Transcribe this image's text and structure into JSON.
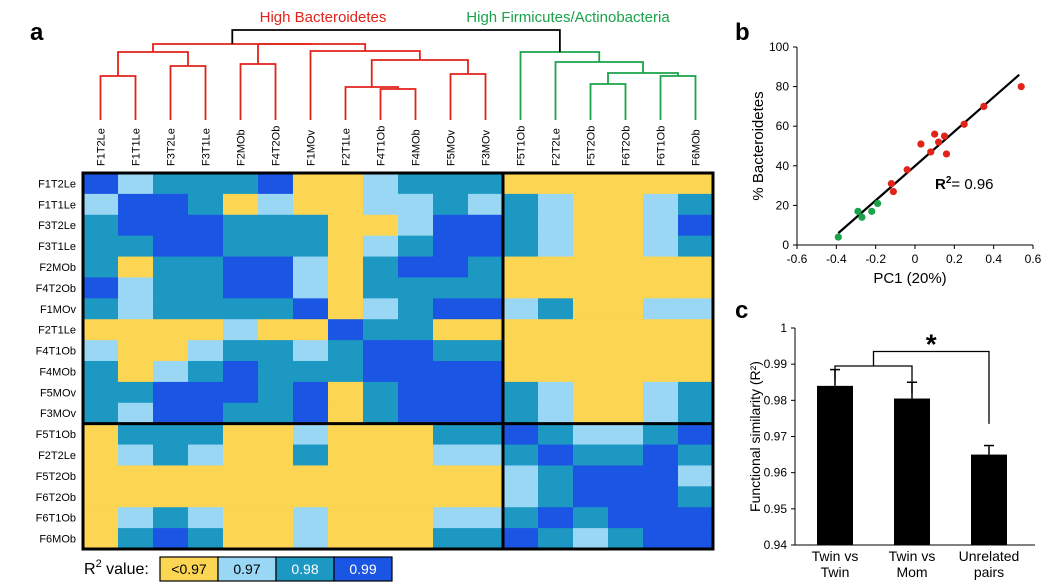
{
  "colors": {
    "bacteroidetes_red": "#e2231a",
    "firmicutes_green": "#1aa34a",
    "bin_lt097": "#fcd553",
    "bin_097": "#9ad7f4",
    "bin_098": "#1c98c2",
    "bin_099": "#1b55e3",
    "black": "#000000"
  },
  "panel_a": {
    "label": "a",
    "group_labels": {
      "red": "High Bacteroidetes",
      "green": "High Firmicutes/Actinobacteria"
    },
    "column_labels": [
      "F1T2Le",
      "F1T1Le",
      "F3T2Le",
      "F3T1Le",
      "F2MOb",
      "F4T2Ob",
      "F1MOv",
      "F2T1Le",
      "F4T1Ob",
      "F4MOb",
      "F5MOv",
      "F3MOv",
      "F5T1Ob",
      "F2T2Le",
      "F5T2Ob",
      "F6T2Ob",
      "F6T1Ob",
      "F6MOb"
    ],
    "row_labels": [
      "F1T2Le",
      "F1T1Le",
      "F3T2Le",
      "F3T1Le",
      "F2MOb",
      "F4T2Ob",
      "F1MOv",
      "F2T1Le",
      "F4T1Ob",
      "F4MOb",
      "F5MOv",
      "F3MOv",
      "F5T1Ob",
      "F2T2Le",
      "F5T2Ob",
      "F6T2Ob",
      "F6T1Ob",
      "F6MOb"
    ],
    "heatmap_bins": [
      [
        3,
        1,
        2,
        2,
        2,
        3,
        0,
        0,
        1,
        2,
        2,
        2,
        0,
        0,
        0,
        0,
        0,
        0
      ],
      [
        1,
        3,
        3,
        2,
        0,
        1,
        0,
        0,
        1,
        1,
        2,
        1,
        2,
        1,
        0,
        0,
        1,
        2
      ],
      [
        2,
        3,
        3,
        3,
        2,
        2,
        2,
        0,
        0,
        1,
        3,
        3,
        2,
        1,
        0,
        0,
        1,
        3
      ],
      [
        2,
        2,
        3,
        3,
        2,
        2,
        2,
        0,
        1,
        2,
        3,
        3,
        2,
        1,
        0,
        0,
        1,
        2
      ],
      [
        2,
        0,
        2,
        2,
        3,
        3,
        1,
        0,
        2,
        3,
        3,
        2,
        0,
        0,
        0,
        0,
        0,
        0
      ],
      [
        3,
        1,
        2,
        2,
        3,
        3,
        1,
        0,
        2,
        2,
        2,
        2,
        0,
        0,
        0,
        0,
        0,
        0
      ],
      [
        2,
        1,
        2,
        2,
        2,
        2,
        3,
        0,
        1,
        2,
        3,
        3,
        1,
        2,
        0,
        0,
        1,
        1
      ],
      [
        0,
        0,
        0,
        0,
        1,
        0,
        0,
        3,
        2,
        2,
        0,
        0,
        0,
        0,
        0,
        0,
        0,
        0
      ],
      [
        1,
        0,
        0,
        1,
        2,
        2,
        1,
        2,
        3,
        3,
        2,
        2,
        0,
        0,
        0,
        0,
        0,
        0
      ],
      [
        2,
        0,
        1,
        2,
        3,
        2,
        2,
        2,
        3,
        3,
        3,
        3,
        0,
        0,
        0,
        0,
        0,
        0
      ],
      [
        2,
        2,
        3,
        3,
        3,
        2,
        3,
        0,
        2,
        3,
        3,
        3,
        2,
        1,
        0,
        0,
        1,
        2
      ],
      [
        2,
        1,
        3,
        3,
        2,
        2,
        3,
        0,
        2,
        3,
        3,
        3,
        2,
        1,
        0,
        0,
        1,
        2
      ],
      [
        0,
        2,
        2,
        2,
        0,
        0,
        1,
        0,
        0,
        0,
        2,
        2,
        3,
        2,
        1,
        1,
        2,
        3
      ],
      [
        0,
        1,
        2,
        1,
        0,
        0,
        2,
        0,
        0,
        0,
        1,
        1,
        2,
        3,
        2,
        2,
        3,
        2
      ],
      [
        0,
        0,
        0,
        0,
        0,
        0,
        0,
        0,
        0,
        0,
        0,
        0,
        1,
        2,
        3,
        3,
        3,
        1
      ],
      [
        0,
        0,
        0,
        0,
        0,
        0,
        0,
        0,
        0,
        0,
        0,
        0,
        1,
        2,
        3,
        3,
        3,
        2
      ],
      [
        0,
        1,
        2,
        1,
        0,
        0,
        1,
        0,
        0,
        0,
        1,
        1,
        2,
        3,
        2,
        3,
        3,
        3
      ],
      [
        0,
        2,
        3,
        2,
        0,
        0,
        1,
        0,
        0,
        0,
        2,
        2,
        3,
        2,
        1,
        2,
        3,
        3
      ]
    ],
    "legend": {
      "title": "R",
      "title_superscript": "2",
      "title_suffix": " value:",
      "items": [
        {
          "label": "<0.97",
          "color": "#fcd553",
          "text_color": "#000000"
        },
        {
          "label": "0.97",
          "color": "#9ad7f4",
          "text_color": "#000000"
        },
        {
          "label": "0.98",
          "color": "#1c98c2",
          "text_color": "#ffffff"
        },
        {
          "label": "0.99",
          "color": "#1b55e3",
          "text_color": "#ffffff"
        }
      ]
    }
  },
  "chart_data": [
    {
      "type": "scatter",
      "panel": "b",
      "title": "",
      "xlabel": "PC1 (20%)",
      "ylabel": "% Bacteroidetes",
      "xlim": [
        -0.6,
        0.6
      ],
      "ylim": [
        0,
        100
      ],
      "xticks": [
        "-0.6",
        "-0.4",
        "-0.2",
        "0",
        "0.2",
        "0.4",
        "0.6"
      ],
      "yticks": [
        "0",
        "20",
        "40",
        "60",
        "80",
        "100"
      ],
      "annotation": {
        "prefix": "R",
        "superscript": "2",
        "suffix": "= 0.96"
      },
      "series": [
        {
          "name": "High Bacteroidetes",
          "color": "#e2231a",
          "points": [
            [
              0.54,
              80
            ],
            [
              0.35,
              70
            ],
            [
              0.25,
              61
            ],
            [
              0.15,
              55
            ],
            [
              0.1,
              56
            ],
            [
              0.12,
              52
            ],
            [
              0.16,
              46
            ],
            [
              0.08,
              47
            ],
            [
              0.03,
              51
            ],
            [
              -0.04,
              38
            ],
            [
              -0.12,
              31
            ],
            [
              -0.11,
              27
            ]
          ]
        },
        {
          "name": "High Firmicutes/Actinobacteria",
          "color": "#1aa34a",
          "points": [
            [
              -0.39,
              4
            ],
            [
              -0.27,
              14
            ],
            [
              -0.22,
              17
            ],
            [
              -0.19,
              21
            ],
            [
              -0.29,
              17
            ]
          ]
        }
      ],
      "fit_line": [
        [
          -0.39,
          6
        ],
        [
          0.53,
          86
        ]
      ]
    },
    {
      "type": "bar",
      "panel": "c",
      "title": "",
      "xlabel": "",
      "ylabel": "Functional similarity (R²)",
      "ylim": [
        0.94,
        1.0
      ],
      "yticks": [
        "0.94",
        "0.95",
        "0.96",
        "0.97",
        "0.98",
        "0.99",
        "1"
      ],
      "categories": [
        [
          "Twin vs",
          "Twin"
        ],
        [
          "Twin vs",
          "Mom"
        ],
        [
          "Unrelated",
          "pairs"
        ]
      ],
      "values": [
        0.984,
        0.9805,
        0.965
      ],
      "error": [
        0.0045,
        0.0045,
        0.0025
      ],
      "bar_color": "#000000",
      "significance_marker": "*"
    }
  ]
}
